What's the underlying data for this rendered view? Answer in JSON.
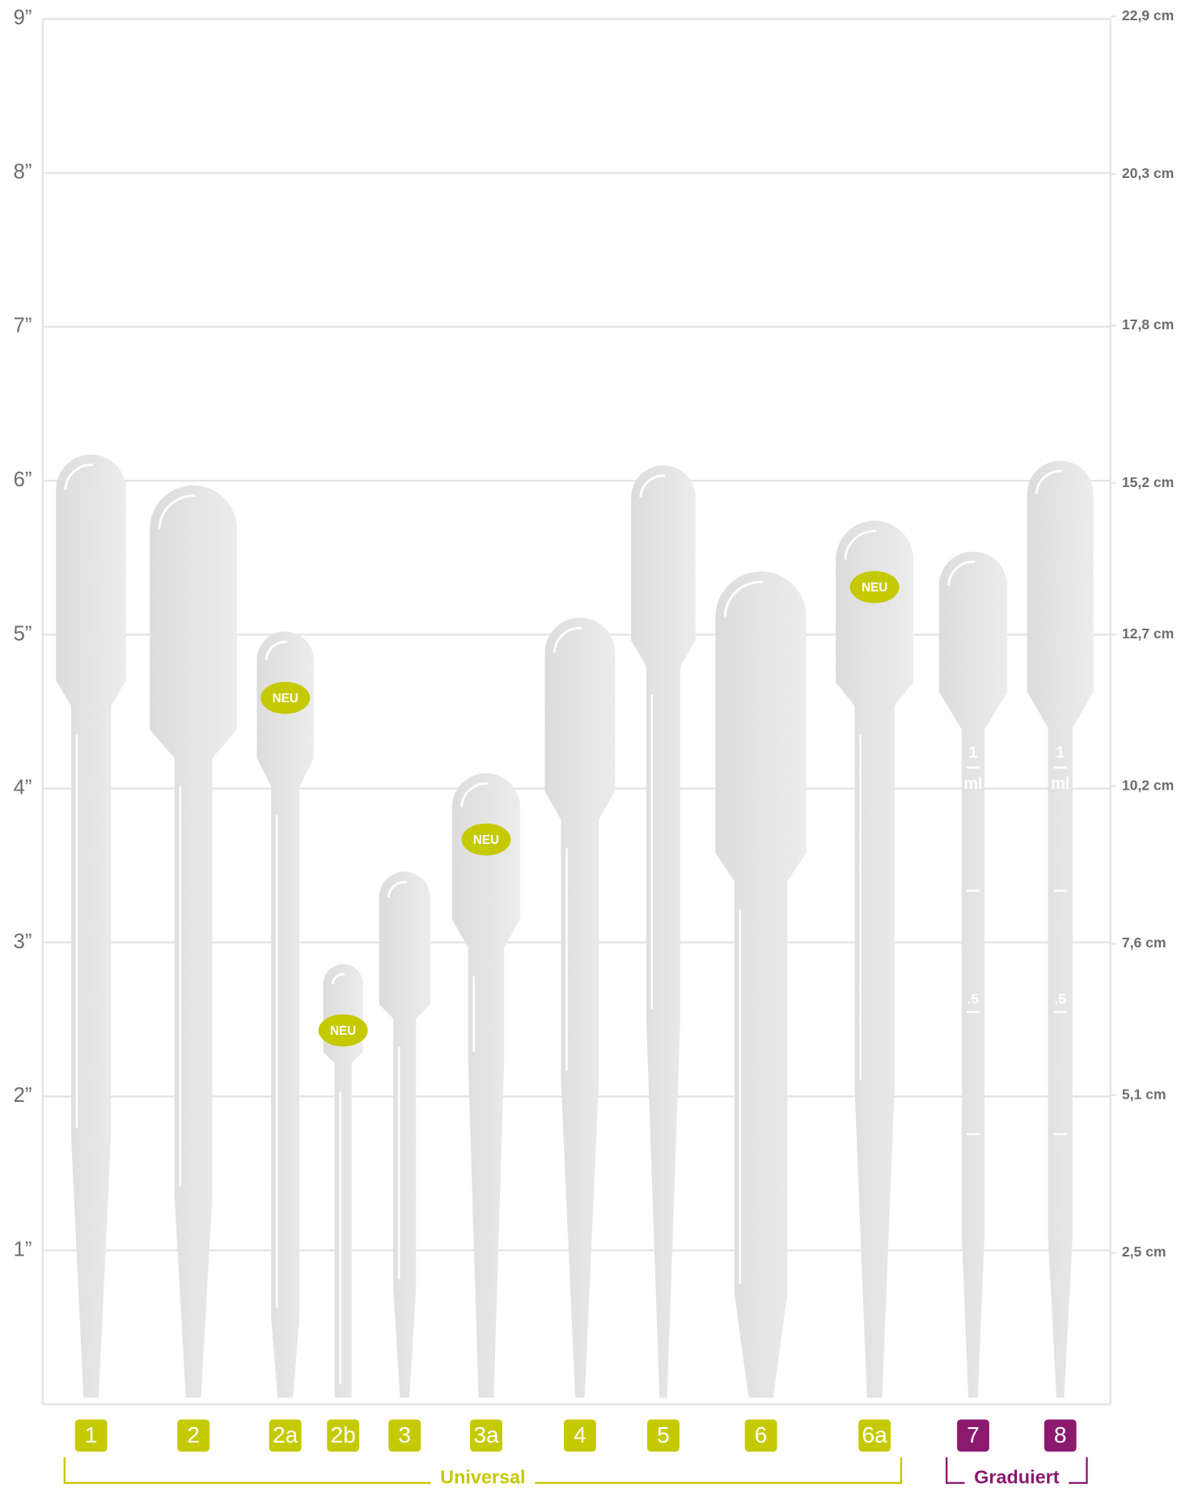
{
  "chart_data": {
    "type": "pipette",
    "ylim": [
      0,
      9
    ],
    "yticks": [
      {
        "value": 1,
        "label": "1”"
      },
      {
        "value": 2,
        "label": "2”"
      },
      {
        "value": 3,
        "label": "3”"
      },
      {
        "value": 4,
        "label": "4”"
      },
      {
        "value": 5,
        "label": "5”"
      },
      {
        "value": 6,
        "label": "6”"
      },
      {
        "value": 7,
        "label": "7”"
      },
      {
        "value": 8,
        "label": "8”"
      },
      {
        "value": 9,
        "label": "9”"
      }
    ],
    "y2lim": [
      0,
      22.86
    ],
    "y2ticks": [
      {
        "value": 2.5,
        "label": "2,5 cm"
      },
      {
        "value": 5.1,
        "label": "5,1 cm"
      },
      {
        "value": 7.6,
        "label": "7,6 cm"
      },
      {
        "value": 10.2,
        "label": "10,2 cm"
      },
      {
        "value": 12.7,
        "label": "12,7 cm"
      },
      {
        "value": 15.2,
        "label": "15,2 cm"
      },
      {
        "value": 17.8,
        "label": "17,8 cm"
      },
      {
        "value": 20.3,
        "label": "20,3 cm"
      },
      {
        "value": 22.9,
        "label": "22,9 cm"
      }
    ],
    "grid": true,
    "groups": [
      {
        "name": "Universal",
        "color": "#c5c900",
        "items": [
          {
            "label": "1",
            "value": 6.17
          },
          {
            "label": "2",
            "value": 5.97
          },
          {
            "label": "2a",
            "value": 5.02,
            "badge": "NEU"
          },
          {
            "label": "2b",
            "value": 2.86,
            "badge": "NEU"
          },
          {
            "label": "3",
            "value": 3.46
          },
          {
            "label": "3a",
            "value": 4.1,
            "badge": "NEU"
          },
          {
            "label": "4",
            "value": 5.11
          },
          {
            "label": "5",
            "value": 6.1
          },
          {
            "label": "6",
            "value": 5.41
          },
          {
            "label": "6a",
            "value": 5.74,
            "badge": "NEU"
          }
        ]
      },
      {
        "name": "Graduiert",
        "color": "#8b1a6f",
        "items": [
          {
            "label": "7",
            "value": 5.54,
            "scale": {
              "top": "1",
              "unit": "ml",
              "half": ".5"
            }
          },
          {
            "label": "8",
            "value": 6.13,
            "scale": {
              "top": "1",
              "unit": "ml",
              "half": ".5"
            }
          }
        ]
      }
    ]
  }
}
